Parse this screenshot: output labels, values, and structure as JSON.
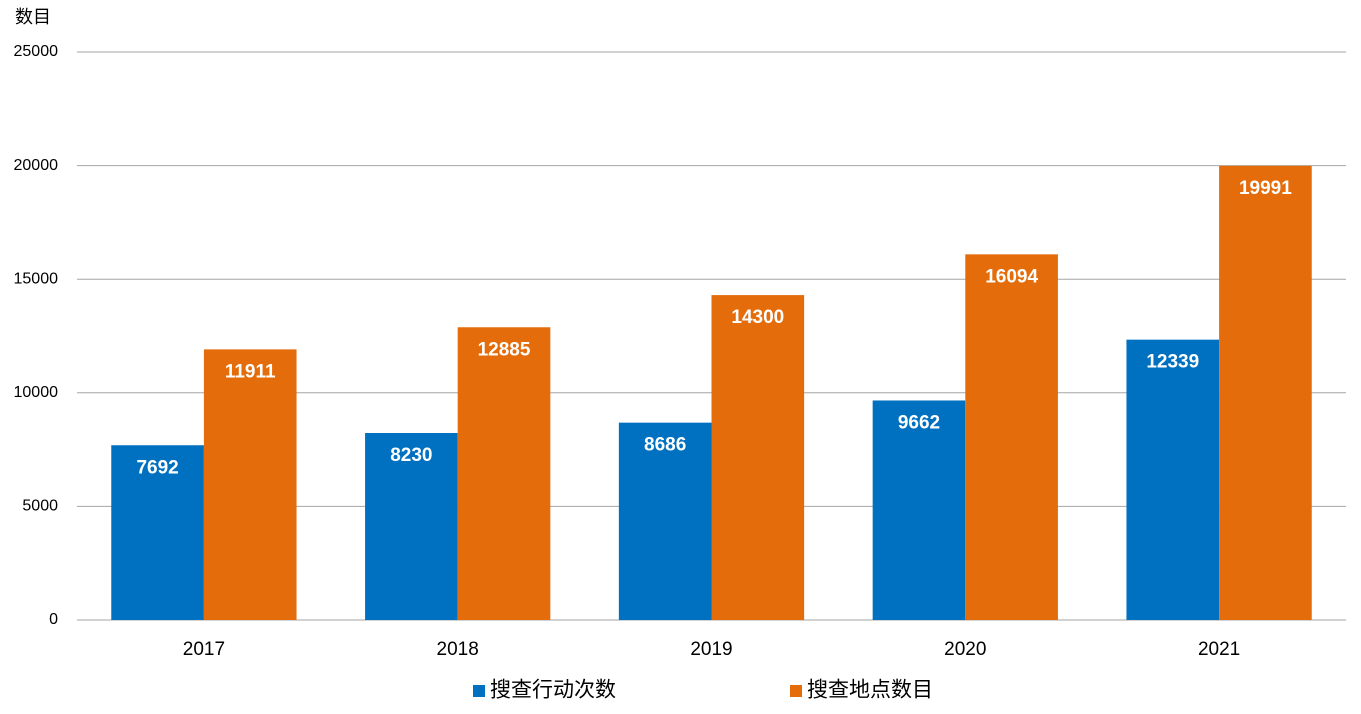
{
  "chart_data": {
    "type": "bar",
    "y_label": "数目",
    "categories": [
      "2017",
      "2018",
      "2019",
      "2020",
      "2021"
    ],
    "series": [
      {
        "name": "搜查行动次数",
        "color": "#0070c0",
        "values": [
          7692,
          8230,
          8686,
          9662,
          12339
        ]
      },
      {
        "name": "搜查地点数目",
        "color": "#e46c0a",
        "values": [
          11911,
          12885,
          14300,
          16094,
          19991
        ]
      }
    ],
    "ylim": [
      0,
      25000
    ],
    "yticks": [
      0,
      5000,
      10000,
      15000,
      20000,
      25000
    ],
    "grid": true,
    "legend": "bottom"
  }
}
